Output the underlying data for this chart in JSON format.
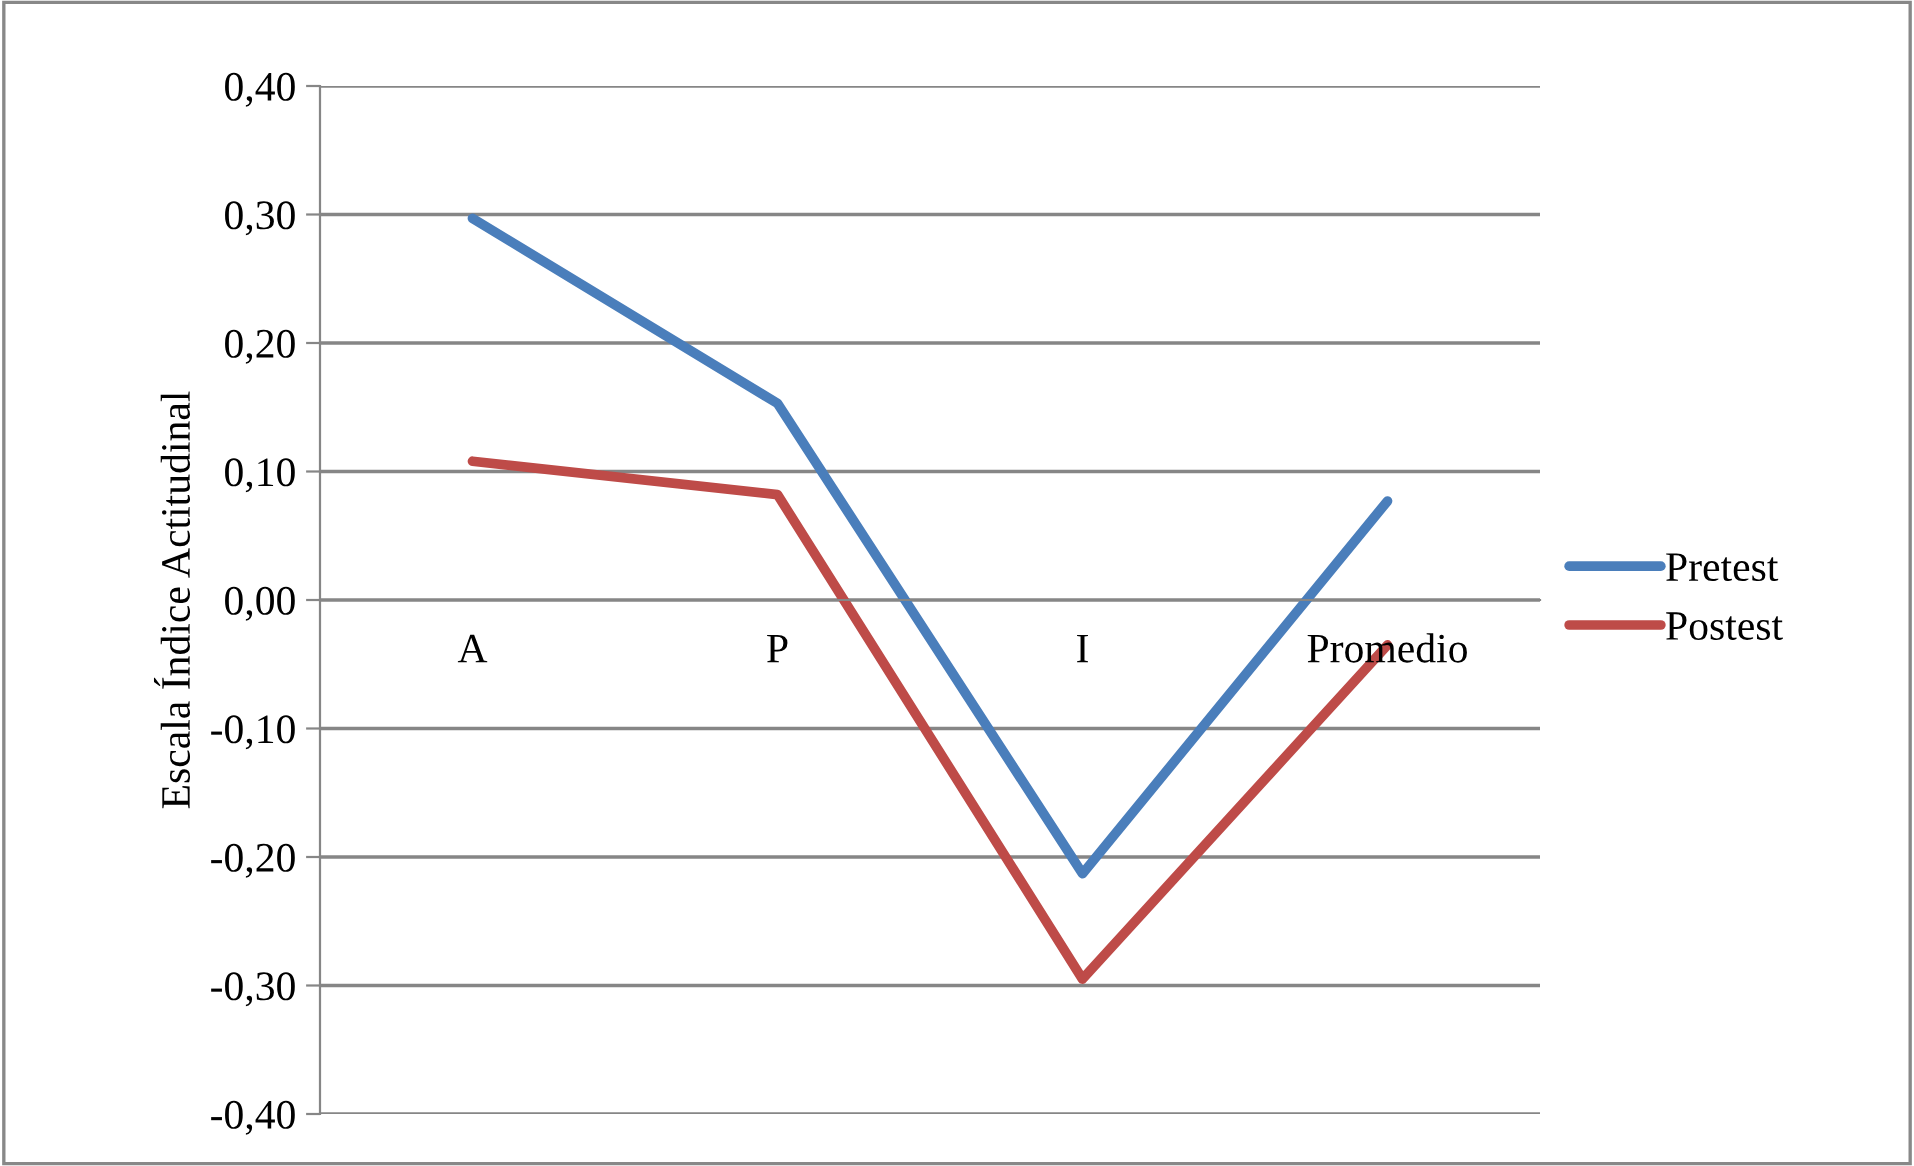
{
  "chart_data": {
    "type": "line",
    "ylabel": "Escala Índice Actitudinal",
    "categories": [
      "A",
      "P",
      "I",
      "Promedio"
    ],
    "series": [
      {
        "name": "Pretest",
        "color": "#4a7ebb",
        "values": [
          0.297,
          0.153,
          -0.213,
          0.077
        ]
      },
      {
        "name": "Postest",
        "color": "#be4b48",
        "values": [
          0.108,
          0.082,
          -0.295,
          -0.035
        ]
      }
    ],
    "ylim": [
      -0.4,
      0.4
    ],
    "yticks": [
      {
        "value": -0.4,
        "label": "-0,40"
      },
      {
        "value": -0.3,
        "label": "-0,30"
      },
      {
        "value": -0.2,
        "label": "-0,20"
      },
      {
        "value": -0.1,
        "label": "-0,10"
      },
      {
        "value": 0,
        "label": "0,00"
      },
      {
        "value": 0.1,
        "label": "0,10"
      },
      {
        "value": 0.2,
        "label": "0,20"
      },
      {
        "value": 0.3,
        "label": "0,30"
      },
      {
        "value": 0.4,
        "label": "0,40"
      }
    ],
    "grid": "y",
    "legend": "right",
    "marker": "none",
    "line_style": "solid"
  }
}
